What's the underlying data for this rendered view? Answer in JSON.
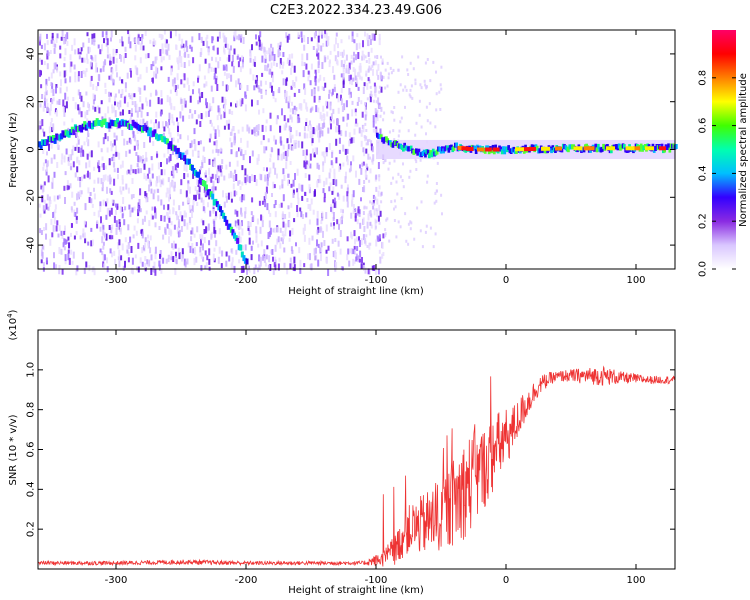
{
  "figure": {
    "title": "C2E3.2022.334.23.49.G06"
  },
  "chart_data": [
    {
      "type": "heatmap",
      "description_role": "spectrogram",
      "xlabel": "Height of straight line (km)",
      "ylabel": "Frequency (Hz)",
      "xlim": [
        -360,
        130
      ],
      "ylim": [
        -50,
        50
      ],
      "xticks": [
        -300,
        -200,
        -100,
        0,
        100
      ],
      "yticks": [
        -40,
        -20,
        0,
        20,
        40
      ],
      "colorbar": {
        "label": "Normalized spectral amplitude",
        "range": [
          0.0,
          1.0
        ],
        "ticks": [
          "0.0",
          "0.2",
          "0.4",
          "0.6",
          "0.8"
        ],
        "colormap": [
          "#ffffff",
          "#d9c6ff",
          "#8a2be2",
          "#3300ff",
          "#00bfff",
          "#00ffb0",
          "#40ff00",
          "#ffff00",
          "#ff8000",
          "#ff0000",
          "#ff0066"
        ]
      },
      "frequency_track": [
        {
          "x": -360,
          "y": 2
        },
        {
          "x": -345,
          "y": 5
        },
        {
          "x": -330,
          "y": 9
        },
        {
          "x": -315,
          "y": 11
        },
        {
          "x": -300,
          "y": 11
        },
        {
          "x": -285,
          "y": 10
        },
        {
          "x": -270,
          "y": 6
        },
        {
          "x": -255,
          "y": 0
        },
        {
          "x": -240,
          "y": -9
        },
        {
          "x": -225,
          "y": -22
        },
        {
          "x": -210,
          "y": -36
        },
        {
          "x": -200,
          "y": -48
        },
        {
          "x": -100,
          "y": 5
        },
        {
          "x": -90,
          "y": 3
        },
        {
          "x": -80,
          "y": 1
        },
        {
          "x": -70,
          "y": -1
        },
        {
          "x": -60,
          "y": -2
        },
        {
          "x": -50,
          "y": 0
        },
        {
          "x": -40,
          "y": 1
        },
        {
          "x": -25,
          "y": 0
        },
        {
          "x": 0,
          "y": 0
        },
        {
          "x": 50,
          "y": 0.5
        },
        {
          "x": 100,
          "y": 0.5
        },
        {
          "x": 130,
          "y": 0.5
        }
      ]
    },
    {
      "type": "line",
      "xlabel": "Height of straight line (km)",
      "ylabel": "SNR (10 * v/v)",
      "multiplier": "(x10",
      "multiplier_exp": "4",
      "multiplier_close": ")",
      "xlim": [
        -360,
        130
      ],
      "ylim": [
        0,
        1.2
      ],
      "xticks": [
        -300,
        -200,
        -100,
        0,
        100
      ],
      "yticks": [
        "0.2",
        "0.4",
        "0.6",
        "0.8",
        "1.0"
      ],
      "color": "#ee3333",
      "series": [
        {
          "x": [
            -360,
            -300,
            -250,
            -200,
            -150,
            -110,
            -95,
            -85,
            -75,
            -65,
            -55,
            -45,
            -35,
            -25,
            -15,
            -5,
            5,
            15,
            25,
            35,
            45,
            60,
            75,
            90,
            110,
            130
          ],
          "values": [
            0.03,
            0.03,
            0.035,
            0.03,
            0.03,
            0.03,
            0.05,
            0.1,
            0.2,
            0.22,
            0.25,
            0.3,
            0.38,
            0.45,
            0.52,
            0.62,
            0.7,
            0.82,
            0.92,
            0.96,
            0.97,
            0.97,
            0.97,
            0.96,
            0.95,
            0.95
          ],
          "noise": [
            0.01,
            0.01,
            0.012,
            0.01,
            0.01,
            0.01,
            0.04,
            0.08,
            0.12,
            0.15,
            0.18,
            0.2,
            0.25,
            0.25,
            0.2,
            0.18,
            0.12,
            0.08,
            0.05,
            0.03,
            0.03,
            0.04,
            0.05,
            0.03,
            0.02,
            0.02
          ]
        }
      ]
    }
  ]
}
